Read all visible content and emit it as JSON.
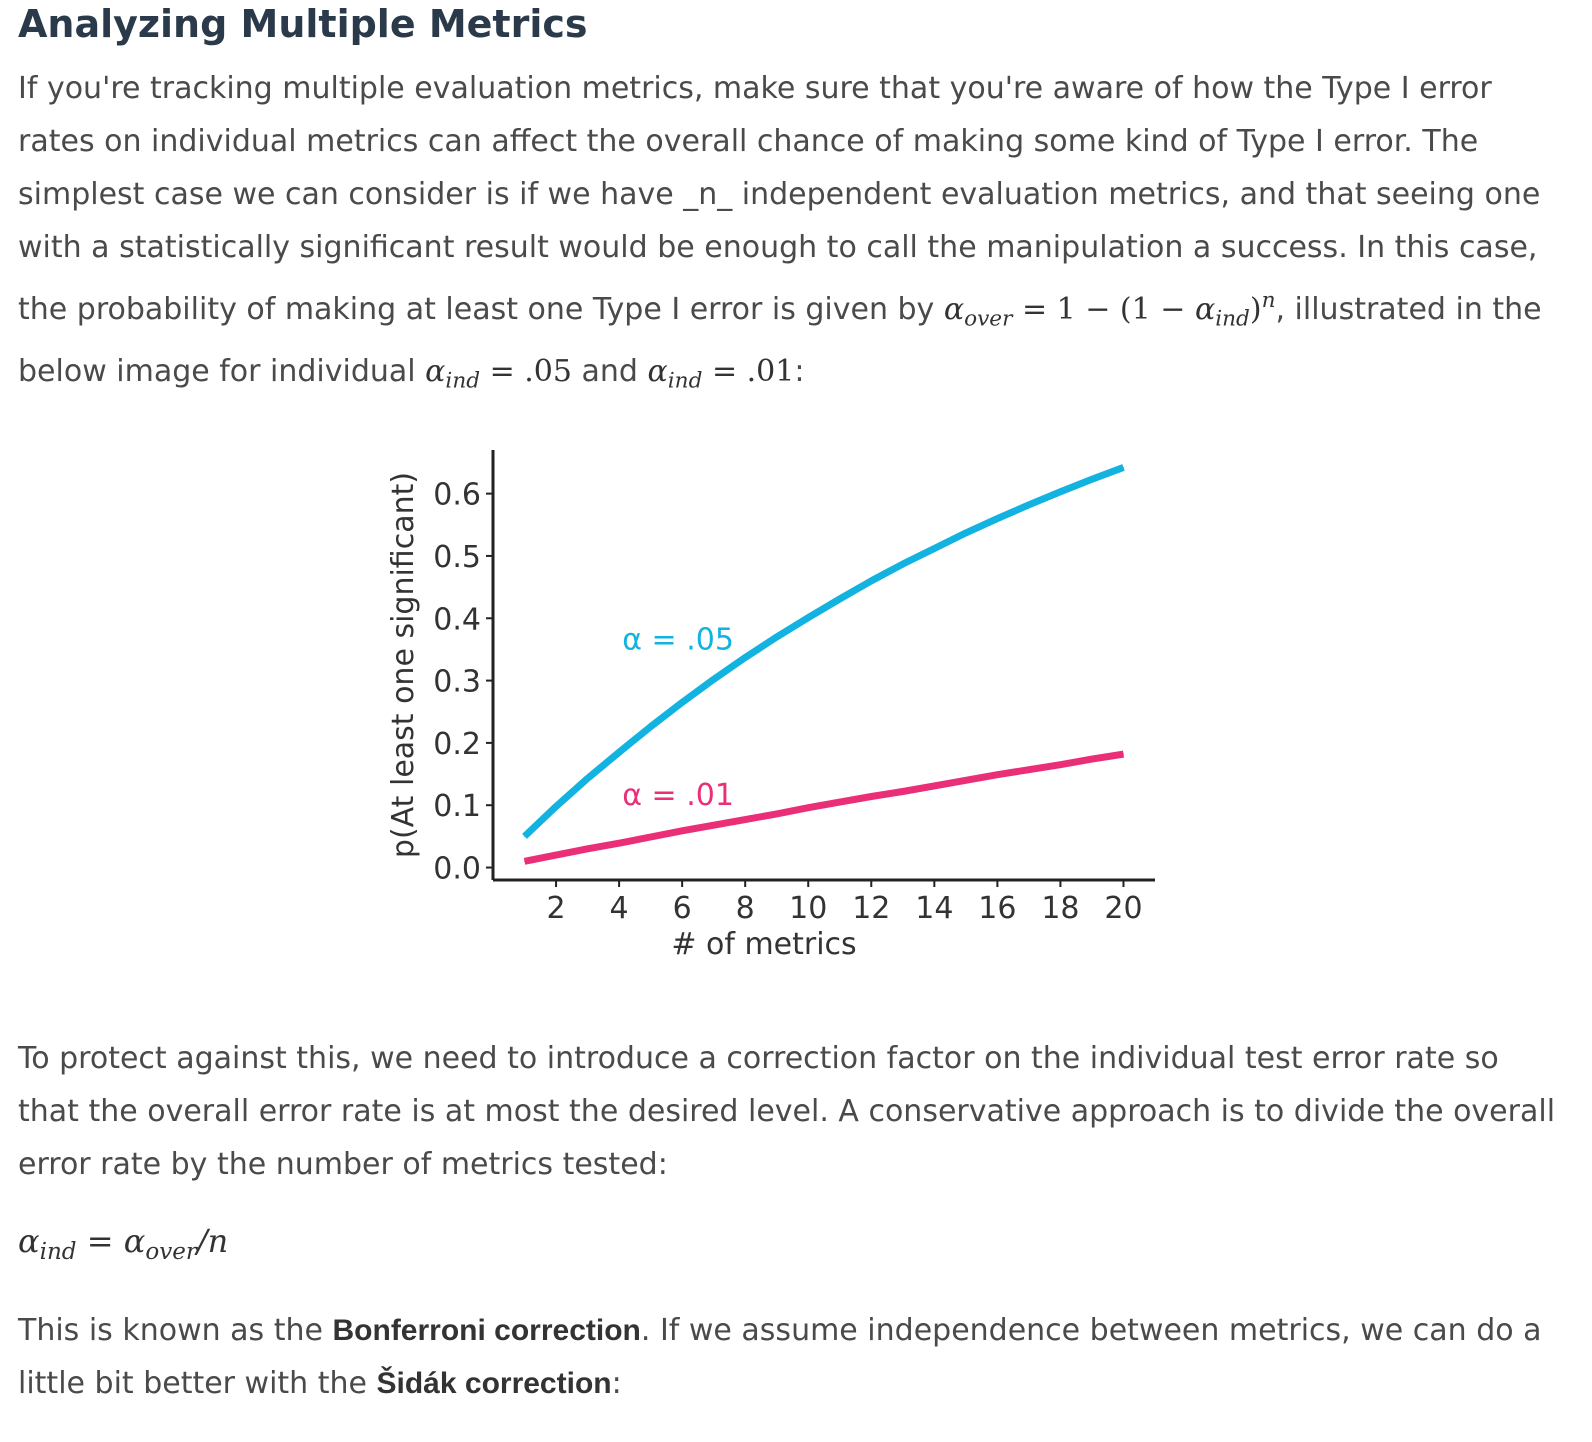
{
  "heading": "Analyzing Multiple Metrics",
  "p1": {
    "text_a": "If you're tracking multiple evaluation metrics, make sure that you're aware of how the Type I error rates on individual metrics can affect the overall chance of making some kind of Type I error. The simplest case we can consider is if we have _n_ independent evaluation metrics, and that seeing one with a statistically significant result would be enough to call the manipulation a success. In this case, the probability of making at least one Type I error is given by ",
    "formula_alpha": "α",
    "formula_over_sub": "over",
    "formula_mid": " = 1 − (1 − ",
    "formula_alpha2": "α",
    "formula_ind_sub": "ind",
    "formula_close": ")",
    "formula_sup": "n",
    "text_b": ", illustrated in the below image for individual ",
    "alpha3": "α",
    "ind3": "ind",
    "val1": " = .05",
    "text_and": " and ",
    "alpha4": "α",
    "ind4": "ind",
    "val2": " = .01",
    "text_end": ":"
  },
  "p2": "To protect against this, we need to introduce a correction factor on the individual test error rate so that the overall error rate is at most the desired level. A conservative approach is to divide the overall error rate by the number of metrics tested:",
  "eq": {
    "alpha_l": "α",
    "ind": "ind",
    "eq_sign": " = ",
    "alpha_r": "α",
    "over": "over",
    "div": "/n"
  },
  "p3": {
    "text_a": "This is known as the ",
    "bonf": "Bonferroni correction",
    "text_b": ". If we assume independence between metrics, we can do a little bit better with the ",
    "sidak": "Šidák correction",
    "text_c": ":"
  },
  "chart_data": {
    "type": "line",
    "xlabel": "# of metrics",
    "ylabel": "p(At least one significant)",
    "xlim": [
      0,
      21
    ],
    "ylim": [
      -0.02,
      0.67
    ],
    "xticks": [
      2,
      4,
      6,
      8,
      10,
      12,
      14,
      16,
      18,
      20
    ],
    "yticks": [
      0.0,
      0.1,
      0.2,
      0.3,
      0.4,
      0.5,
      0.6
    ],
    "ytick_labels": [
      "0.0",
      "0.1",
      "0.2",
      "0.3",
      "0.4",
      "0.5",
      "0.6"
    ],
    "x": [
      1,
      2,
      3,
      4,
      5,
      6,
      7,
      8,
      9,
      10,
      11,
      12,
      13,
      14,
      15,
      16,
      17,
      18,
      19,
      20
    ],
    "series": [
      {
        "name": "α = .05",
        "color": "#12b3e0",
        "values": [
          0.05,
          0.098,
          0.143,
          0.185,
          0.226,
          0.265,
          0.302,
          0.337,
          0.37,
          0.401,
          0.431,
          0.46,
          0.487,
          0.512,
          0.537,
          0.56,
          0.582,
          0.603,
          0.623,
          0.642
        ]
      },
      {
        "name": "α = .01",
        "color": "#ea2f78",
        "values": [
          0.01,
          0.02,
          0.03,
          0.039,
          0.049,
          0.059,
          0.068,
          0.077,
          0.086,
          0.096,
          0.105,
          0.114,
          0.122,
          0.131,
          0.14,
          0.149,
          0.157,
          0.165,
          0.174,
          0.182
        ]
      }
    ]
  }
}
